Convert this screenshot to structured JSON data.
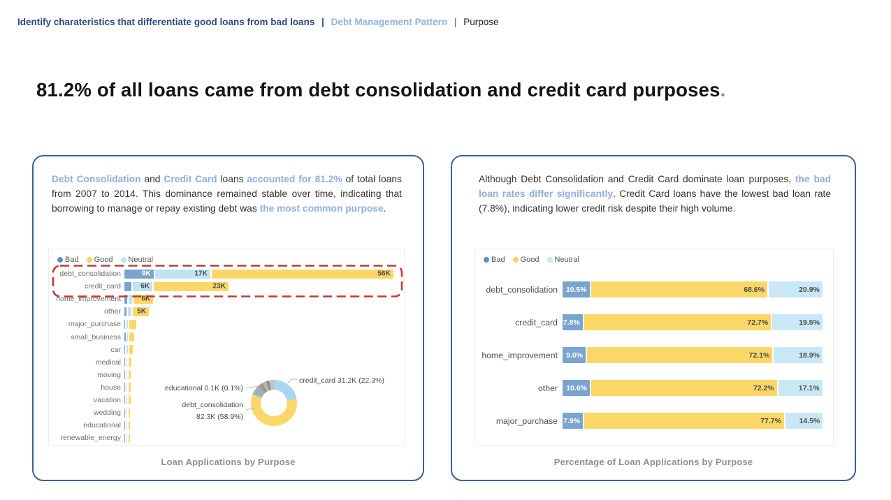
{
  "breadcrumb": {
    "part1": "Identify charateristics that differentiate good loans from bad loans",
    "separator": "|",
    "part2": "Debt Management Pattern",
    "part3": "Purpose"
  },
  "headline": {
    "text": "81.2% of all loans came from debt consolidation and credit card purposes",
    "period": "."
  },
  "colors": {
    "navy": "#2d4a80",
    "accent_blue": "#8dafdd",
    "card_border": "#3c5f9a",
    "bad": "#7aa4cf",
    "good": "#fbd768",
    "neutral_left": "#bee3f3",
    "neutral_right": "#c9e8f5",
    "dashed_red": "#bf3a3a",
    "title_gray": "#8f8f8f"
  },
  "left_card": {
    "paragraph": [
      {
        "text": "Debt Consolidation",
        "highlight": true
      },
      {
        "text": " and ",
        "highlight": false
      },
      {
        "text": "Credit Card",
        "highlight": true
      },
      {
        "text": " loans ",
        "highlight": false
      },
      {
        "text": "accounted for 81.2%",
        "highlight": true
      },
      {
        "text": " of total loans from 2007 to 2014. This dominance remained stable over time, indicating that borrowing to manage or repay existing debt was ",
        "highlight": false
      },
      {
        "text": "the most common purpose",
        "highlight": true
      },
      {
        "text": ".",
        "highlight": false
      }
    ]
  },
  "right_card": {
    "paragraph": [
      {
        "text": "Although Debt Consolidation and Credit Card dominate loan purposes, ",
        "highlight": false
      },
      {
        "text": "the bad loan rates differ significantly",
        "highlight": true
      },
      {
        "text": ". Credit Card loans have the lowest bad loan rate (7.8%), indicating lower credit risk despite their high volume.",
        "highlight": false
      }
    ]
  },
  "chart_data": [
    {
      "type": "bar",
      "orientation": "horizontal_stacked",
      "title": "Loan Applications by Purpose",
      "value_unit": "thousands",
      "x_max_k": 84,
      "legend": [
        {
          "label": "Bad",
          "color": "#5e8fc4"
        },
        {
          "label": "Good",
          "color": "#f9d465"
        },
        {
          "label": "Neutral",
          "color": "#bde2f2"
        }
      ],
      "legend_position": "top-left",
      "categories": [
        "debt_consolidation",
        "credit_card",
        "home_improvement",
        "other",
        "major_purchase",
        "small_business",
        "car",
        "medical",
        "moving",
        "house",
        "vacation",
        "wedding",
        "educational",
        "renewable_energy"
      ],
      "series": [
        {
          "name": "Bad",
          "color": "#7aa4cf",
          "values": [
            9,
            2.2,
            0.8,
            0.7,
            0.25,
            0.35,
            0.12,
            0.1,
            0.08,
            0.06,
            0.05,
            0.05,
            0.03,
            0.01
          ],
          "labels": [
            "9K",
            null,
            null,
            null,
            null,
            null,
            null,
            null,
            null,
            null,
            null,
            null,
            null,
            null
          ]
        },
        {
          "name": "Neutral",
          "color": "#bee3f3",
          "values": [
            17,
            6,
            1.2,
            1.0,
            0.5,
            0.4,
            0.35,
            0.25,
            0.2,
            0.15,
            0.12,
            0.1,
            0.06,
            0.02
          ],
          "labels": [
            "17K",
            "6K",
            null,
            null,
            null,
            null,
            null,
            null,
            null,
            null,
            null,
            null,
            null,
            null
          ]
        },
        {
          "name": "Good",
          "color": "#fbd768",
          "values": [
            56,
            23,
            6,
            5,
            2.1,
            1.4,
            1.1,
            0.85,
            0.65,
            0.55,
            0.5,
            0.45,
            0.15,
            0.06
          ],
          "labels": [
            "56K",
            "23K",
            "6K",
            "5K",
            null,
            null,
            null,
            null,
            null,
            null,
            null,
            null,
            null,
            null
          ]
        }
      ],
      "annotation": {
        "type": "dashed_box",
        "rows": [
          "debt_consolidation",
          "credit_card"
        ],
        "color": "#bf3a3a"
      }
    },
    {
      "type": "pie",
      "subtype": "donut",
      "slices": [
        {
          "name": "credit_card",
          "pct": 22.3,
          "color": "#a9d5ee"
        },
        {
          "name": "debt_consolidation",
          "pct": 58.9,
          "color": "#fad768"
        },
        {
          "name": "unlabeled_small_blue",
          "pct": 3.4,
          "color": "#8fb3d8"
        },
        {
          "name": "unlabeled_gray_1",
          "pct": 3.8,
          "color": "#ababab"
        },
        {
          "name": "unlabeled_gray_2",
          "pct": 3.2,
          "color": "#989898"
        },
        {
          "name": "unlabeled_gray_3",
          "pct": 2.8,
          "color": "#b7b7b7"
        },
        {
          "name": "unlabeled_gray_4",
          "pct": 2.2,
          "color": "#8e8e8e"
        },
        {
          "name": "unlabeled_gray_5",
          "pct": 3.4,
          "color": "#c4c4c4"
        }
      ],
      "callouts": {
        "educational": "educational 0.1K (0.1%)",
        "debt_line1": "debt_consolidation",
        "debt_line2": "82.3K (58.9%)",
        "credit_card": "credit_card 31.2K (22.3%)"
      }
    },
    {
      "type": "bar",
      "orientation": "horizontal_100pct_stacked",
      "title": "Percentage of Loan Applications by Purpose",
      "legend": [
        {
          "label": "Bad",
          "color": "#5e8fc4"
        },
        {
          "label": "Good",
          "color": "#f9d465"
        },
        {
          "label": "Neutral",
          "color": "#c9e8f5"
        }
      ],
      "legend_position": "top-left",
      "categories": [
        "debt_consolidation",
        "credit_card",
        "home_improvement",
        "other",
        "major_purchase"
      ],
      "series": [
        {
          "name": "Bad",
          "color": "#7aa4cf",
          "values": [
            10.5,
            7.8,
            9.0,
            10.6,
            7.9
          ],
          "labels": [
            "10.5%",
            "7.8%",
            "9.0%",
            "10.6%",
            "7.9%"
          ]
        },
        {
          "name": "Good",
          "color": "#fbd768",
          "values": [
            68.6,
            72.7,
            72.1,
            72.2,
            77.7
          ],
          "labels": [
            "68.6%",
            "72.7%",
            "72.1%",
            "72.2%",
            "77.7%"
          ]
        },
        {
          "name": "Neutral",
          "color": "#c9e8f5",
          "values": [
            20.9,
            19.5,
            18.9,
            17.1,
            14.5
          ],
          "labels": [
            "20.9%",
            "19.5%",
            "18.9%",
            "17.1%",
            "14.5%"
          ]
        }
      ]
    }
  ]
}
